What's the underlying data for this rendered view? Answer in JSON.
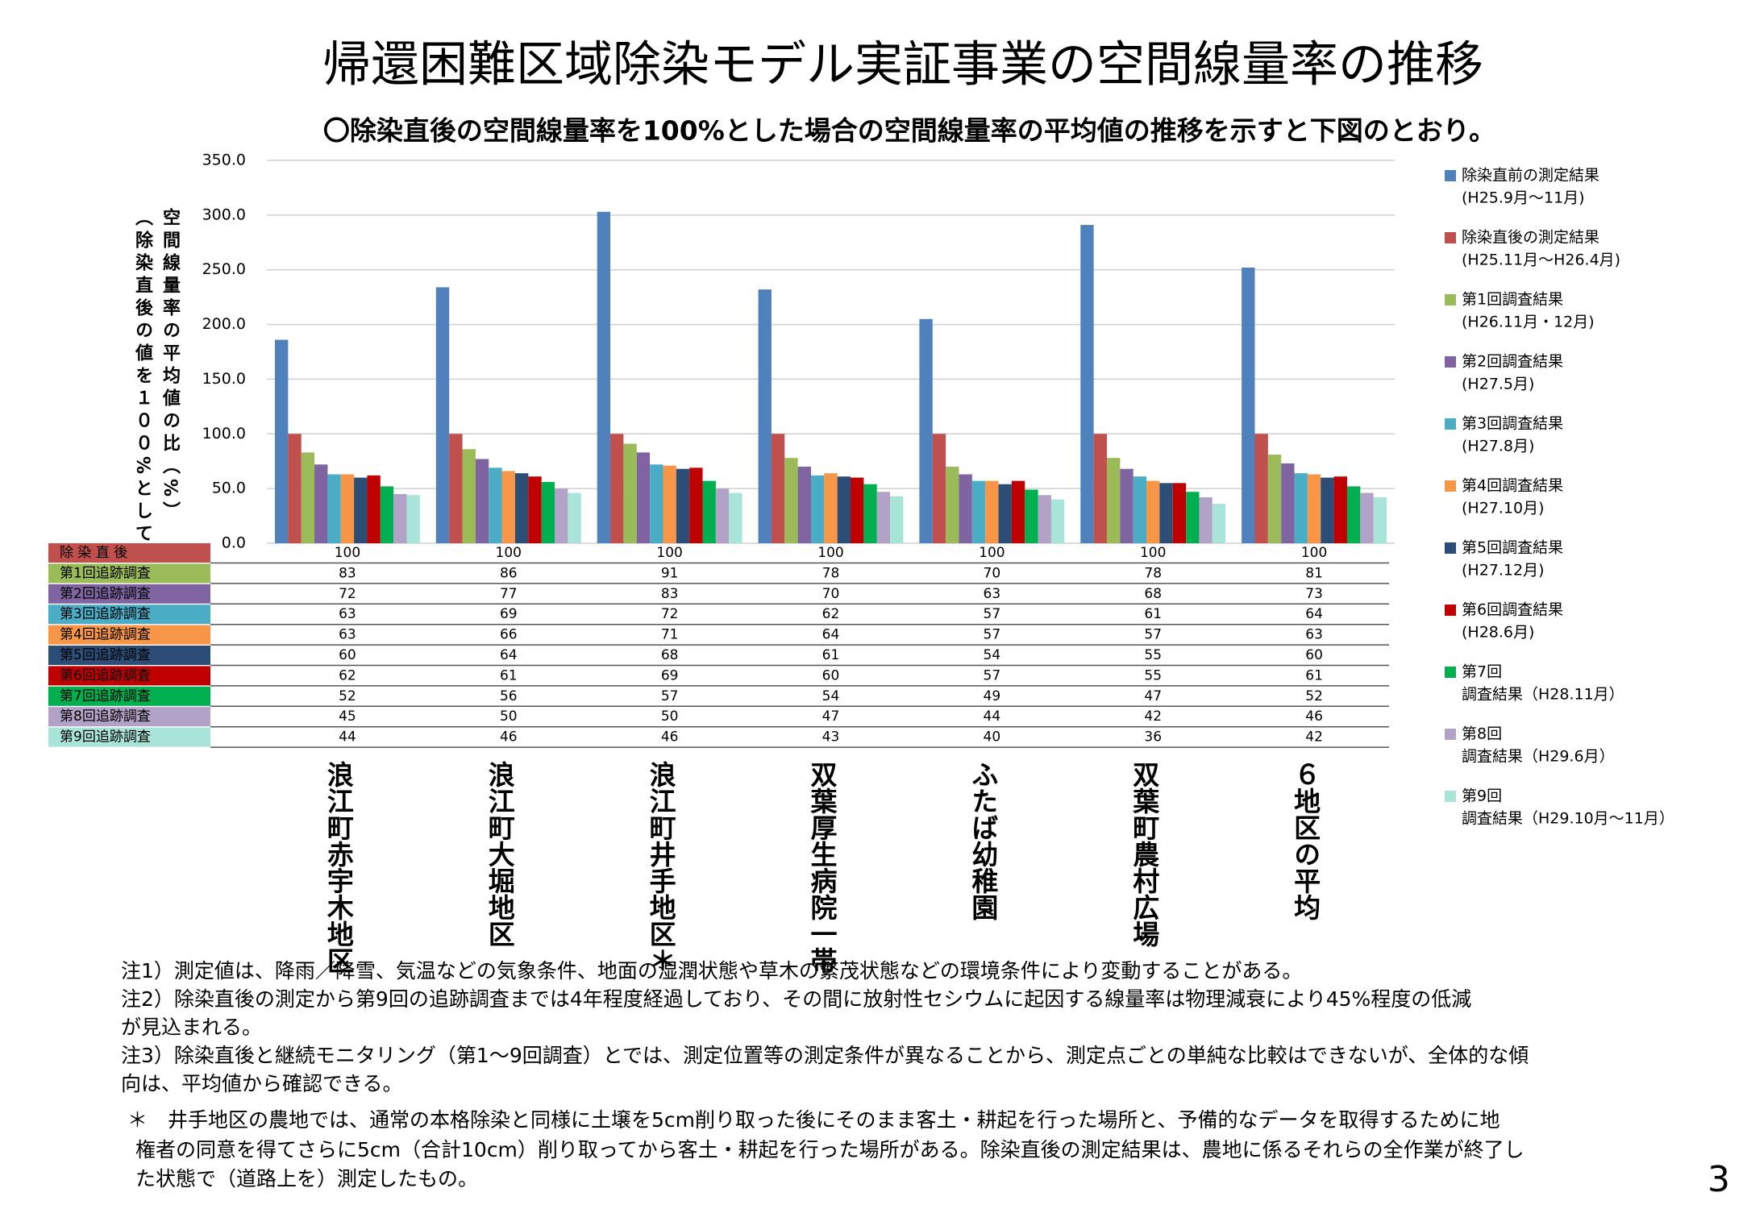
{
  "title": "帰還困難区域除染モデル実証事業の空間線量率の推移",
  "subtitle": "〇除染直後の空間線量率を100%とした場合の空間線量率の平均値の推移を示すと下図のとおり。",
  "chart_data": {
    "type": "bar",
    "y_title": [
      "空間線量率の平均値の比（%）",
      "（除染直後の値を１００%として）"
    ],
    "categories": [
      "浪江町赤宇木地区",
      "浪江町大堀地区",
      "浪江町井手地区＊",
      "双葉厚生病院一帯",
      "ふたば幼稚園",
      "双葉町農村広場",
      "６地区の平均"
    ],
    "ylim": [
      0,
      350
    ],
    "yticks": [
      {
        "value": 0,
        "label": "0.0"
      },
      {
        "value": 50,
        "label": "50.0"
      },
      {
        "value": 100,
        "label": "100.0"
      },
      {
        "value": 150,
        "label": "150.0"
      },
      {
        "value": 200,
        "label": "200.0"
      },
      {
        "value": 250,
        "label": "250.0"
      },
      {
        "value": 300,
        "label": "300.0"
      },
      {
        "value": 350,
        "label": "350.0"
      }
    ],
    "grid": true,
    "legend": "right",
    "series": [
      {
        "name": "除染直前の測定結果",
        "legend_sub": "(H25.9月～11月)",
        "color": "#4f81bd",
        "values": [
          186,
          234,
          303,
          232,
          205,
          291,
          252
        ]
      },
      {
        "name": "除染直後の測定結果",
        "legend_sub": "(H25.11月～H26.4月)",
        "table_label": "除 染 直 後",
        "color": "#c0504d",
        "values": [
          100,
          100,
          100,
          100,
          100,
          100,
          100
        ]
      },
      {
        "name": "第1回調査結果",
        "legend_sub": "(H26.11月・12月)",
        "table_label": "第1回追跡調査",
        "color": "#9bbb59",
        "values": [
          83,
          86,
          91,
          78,
          70,
          78,
          81
        ]
      },
      {
        "name": "第2回調査結果",
        "legend_sub": "(H27.5月)",
        "table_label": "第2回追跡調査",
        "color": "#8064a2",
        "values": [
          72,
          77,
          83,
          70,
          63,
          68,
          73
        ]
      },
      {
        "name": "第3回調査結果",
        "legend_sub": "(H27.8月)",
        "table_label": "第3回追跡調査",
        "color": "#4bacc6",
        "values": [
          63,
          69,
          72,
          62,
          57,
          61,
          64
        ]
      },
      {
        "name": "第4回調査結果",
        "legend_sub": "(H27.10月)",
        "table_label": "第4回追跡調査",
        "color": "#f79646",
        "values": [
          63,
          66,
          71,
          64,
          57,
          57,
          63
        ]
      },
      {
        "name": "第5回調査結果",
        "legend_sub": "(H27.12月)",
        "table_label": "第5回追跡調査",
        "color": "#2c4d75",
        "values": [
          60,
          64,
          68,
          61,
          54,
          55,
          60
        ]
      },
      {
        "name": "第6回調査結果",
        "legend_sub": "(H28.6月)",
        "table_label": "第6回追跡調査",
        "color": "#c00000",
        "values": [
          62,
          61,
          69,
          60,
          57,
          55,
          61
        ]
      },
      {
        "name": "第7回",
        "legend_sub": "調査結果（H28.11月）",
        "table_label": "第7回追跡調査",
        "color": "#00b050",
        "values": [
          52,
          56,
          57,
          54,
          49,
          47,
          52
        ]
      },
      {
        "name": "第8回",
        "legend_sub": "調査結果（H29.6月）",
        "table_label": "第8回追跡調査",
        "color": "#b3a2c7",
        "values": [
          45,
          50,
          50,
          47,
          44,
          42,
          46
        ]
      },
      {
        "name": "第9回",
        "legend_sub": "調査結果（H29.10月～11月）",
        "table_label": "第9回追跡調査",
        "color": "#a9e4d9",
        "values": [
          44,
          46,
          46,
          43,
          40,
          36,
          42
        ]
      }
    ]
  },
  "notes": [
    "注1）測定値は、降雨／降雪、気温などの気象条件、地面の湿潤状態や草木の繁茂状態などの環境条件により変動することがある。",
    "注2）除染直後の測定から第9回の追跡調査までは4年程度経過しており、その間に放射性セシウムに起因する線量率は物理減衰により45%程度の低減",
    "が見込まれる。",
    "注3）除染直後と継続モニタリング（第1～9回調査）とでは、測定位置等の測定条件が異なることから、測定点ごとの単純な比較はできないが、全体的な傾",
    "向は、平均値から確認できる。",
    "＊　井手地区の農地では、通常の本格除染と同様に土壌を5cm削り取った後にそのまま客土・耕起を行った場所と、予備的なデータを取得するために地",
    "権者の同意を得てさらに5cm（合計10cm）削り取ってから客土・耕起を行った場所がある。除染直後の測定結果は、農地に係るそれらの全作業が終了し",
    "た状態で（道路上を）測定したもの。"
  ],
  "page_number": "3"
}
